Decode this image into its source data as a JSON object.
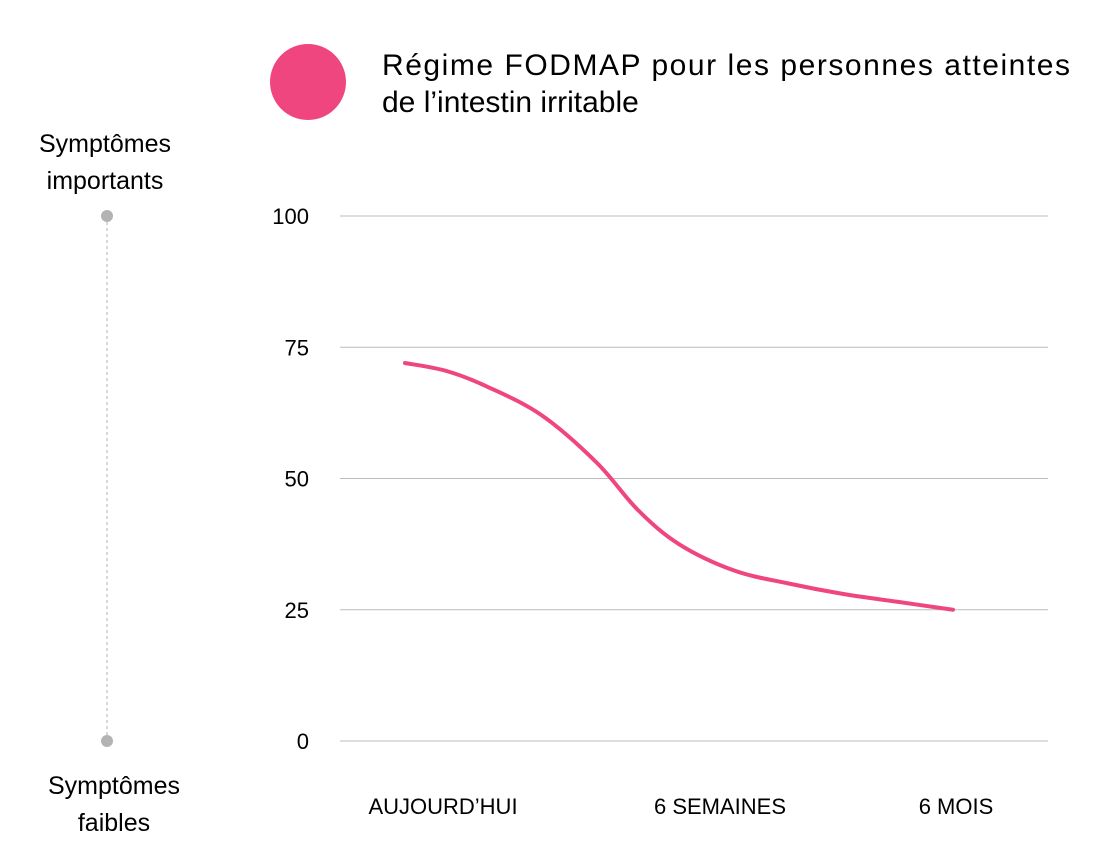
{
  "chart_data": {
    "type": "line",
    "legend": {
      "label": "Régime FODMAP pour les personnes atteintes de l’intestin irritable",
      "label_lines": [
        "Régime FODMAP pour les personnes atteintes",
        "de l’intestin irritable"
      ],
      "color": "#ef4680"
    },
    "side_axis": {
      "top_label_lines": [
        "Symptômes",
        "importants"
      ],
      "bottom_label_lines": [
        "Symptômes",
        "faibles"
      ],
      "line_color": "#bdbdbd",
      "dot_color": "#b3b3b3"
    },
    "ylim": [
      0,
      100
    ],
    "yticks": [
      0,
      25,
      50,
      75,
      100
    ],
    "ytick_labels": [
      "0",
      "25",
      "50",
      "75",
      "100"
    ],
    "categories": [
      "AUJOURD’HUI",
      "6 SEMAINES",
      "6 MOIS"
    ],
    "series": [
      {
        "name": "Régime FODMAP pour les personnes atteintes de l’intestin irritable",
        "color": "#ef4680",
        "x": [
          0,
          0.15,
          0.3,
          0.5,
          0.7,
          0.85,
          1.0,
          1.2,
          1.4,
          1.6,
          1.8,
          2.0
        ],
        "values": [
          72,
          70.5,
          67.5,
          62,
          53,
          44,
          37.5,
          32.5,
          30,
          28,
          26.5,
          25
        ]
      }
    ],
    "gridline_color": "#bcbcbc"
  }
}
